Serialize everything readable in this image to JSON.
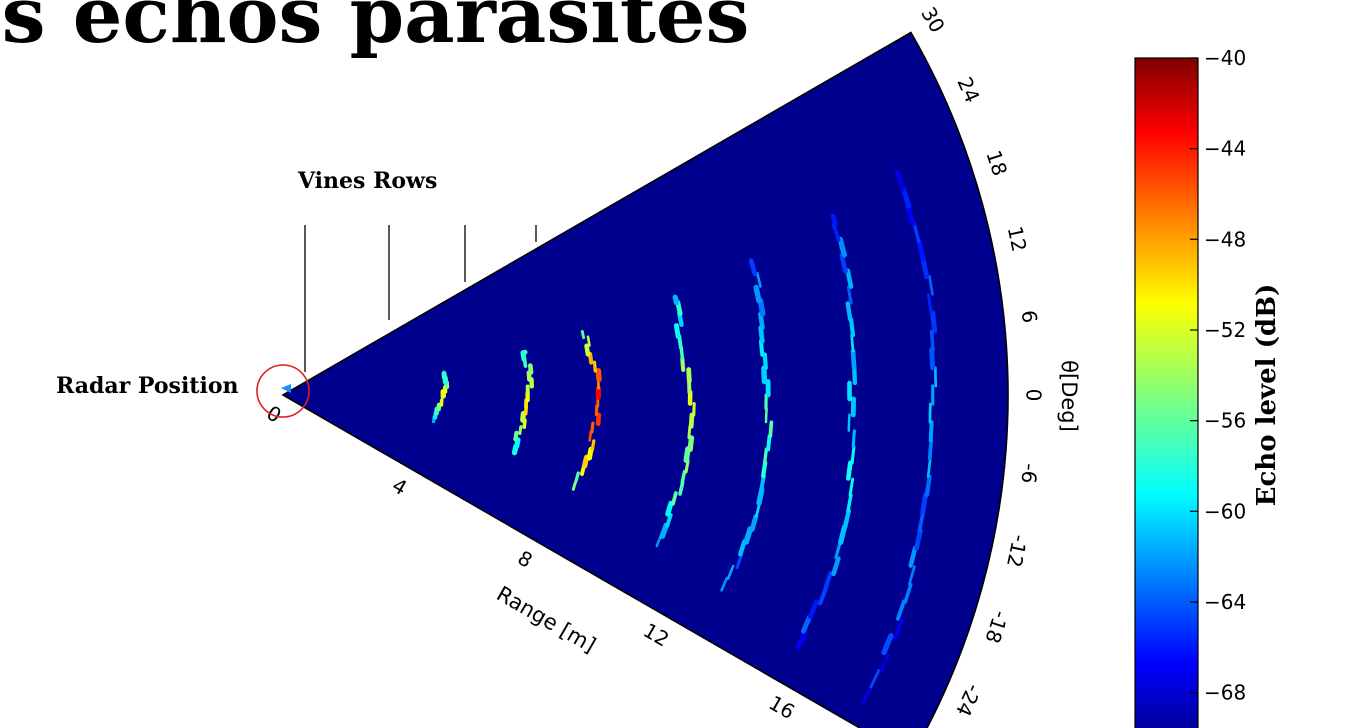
{
  "page_title": "es échos parasites",
  "chart_data": {
    "type": "heatmap",
    "subtype": "polar-sector",
    "xlabel": "Range [m]",
    "ylabel": "θ[Deg]",
    "range_ticks": [
      0,
      4,
      8,
      12,
      16
    ],
    "range_lim": [
      0,
      20
    ],
    "angle_ticks": [
      30,
      24,
      18,
      12,
      6,
      0,
      -6,
      -12,
      -18,
      -24
    ],
    "angle_lim": [
      -30,
      30
    ],
    "annotations": {
      "radar": "Radar Position",
      "vines": "Vines Rows"
    },
    "colorbar": {
      "label": "Echo level (dB)",
      "ticks": [
        -40,
        -44,
        -48,
        -52,
        -56,
        -60,
        -64,
        -68
      ],
      "range": [
        -70,
        -40
      ],
      "colormap": "jet"
    },
    "echo_arcs": [
      {
        "range": 4.4,
        "peak_db": -50,
        "angle_span": [
          -10,
          8
        ]
      },
      {
        "range": 6.7,
        "peak_db": -49,
        "angle_span": [
          -14,
          10
        ]
      },
      {
        "range": 8.6,
        "peak_db": -43,
        "angle_span": [
          -18,
          12
        ]
      },
      {
        "range": 11.2,
        "peak_db": -51,
        "angle_span": [
          -22,
          14
        ]
      },
      {
        "range": 13.4,
        "peak_db": -56,
        "angle_span": [
          -24,
          16
        ]
      },
      {
        "range": 15.8,
        "peak_db": -58,
        "angle_span": [
          -26,
          18
        ]
      },
      {
        "range": 18.0,
        "peak_db": -60,
        "angle_span": [
          -28,
          20
        ]
      }
    ],
    "colors": {
      "background": "#00008f",
      "grid_line": "#000000",
      "radar_circle": "#e0201e"
    }
  }
}
